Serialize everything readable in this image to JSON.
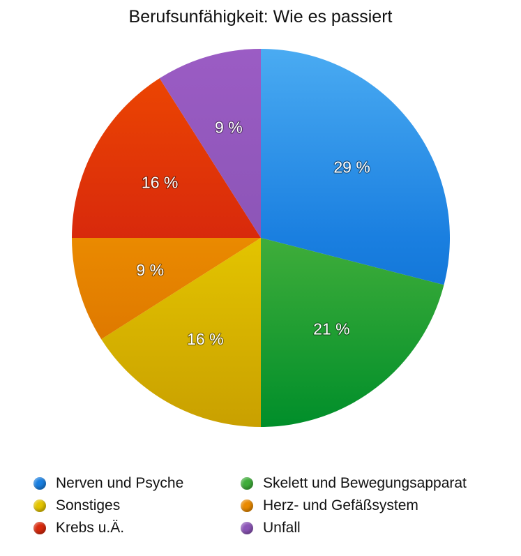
{
  "chart_data": {
    "type": "pie",
    "title": "Berufsunfähigkeit: Wie es passiert",
    "start_angle_deg": 0,
    "direction": "clockwise",
    "slices": [
      {
        "label": "Nerven und Psyche",
        "value": 29,
        "value_label": "29 %",
        "color": "#1a7fe0",
        "color_light": "#4aabf2",
        "color_dark": "#0062c4"
      },
      {
        "label": "Skelett und Bewegungsapparat",
        "value": 21,
        "value_label": "21 %",
        "color": "#3fad3a",
        "color_light": "#6ccb48",
        "color_dark": "#008e2a"
      },
      {
        "label": "Sonstiges",
        "value": 16,
        "value_label": "16 %",
        "color": "#e3c400",
        "color_light": "#f8e200",
        "color_dark": "#c9a000"
      },
      {
        "label": "Herz- und Gefäßsystem",
        "value": 9,
        "value_label": "9 %",
        "color": "#ea8a00",
        "color_light": "#f39c00",
        "color_dark": "#d56a00"
      },
      {
        "label": "Krebs u.Ä.",
        "value": 16,
        "value_label": "16 %",
        "color": "#d8290c",
        "color_light": "#ef4a00",
        "color_dark": "#c41400"
      },
      {
        "label": "Unfall",
        "value": 9,
        "value_label": "9 %",
        "color": "#8c55b7",
        "color_light": "#9b5cc4",
        "color_dark": "#7c40a8"
      }
    ],
    "legend": {
      "placement": "bottom",
      "columns": [
        [
          "Nerven und Psyche",
          "Sonstiges",
          "Krebs u.Ä."
        ],
        [
          "Skelett und Bewegungsapparat",
          "Herz- und Gefäßsystem",
          "Unfall"
        ]
      ]
    }
  }
}
